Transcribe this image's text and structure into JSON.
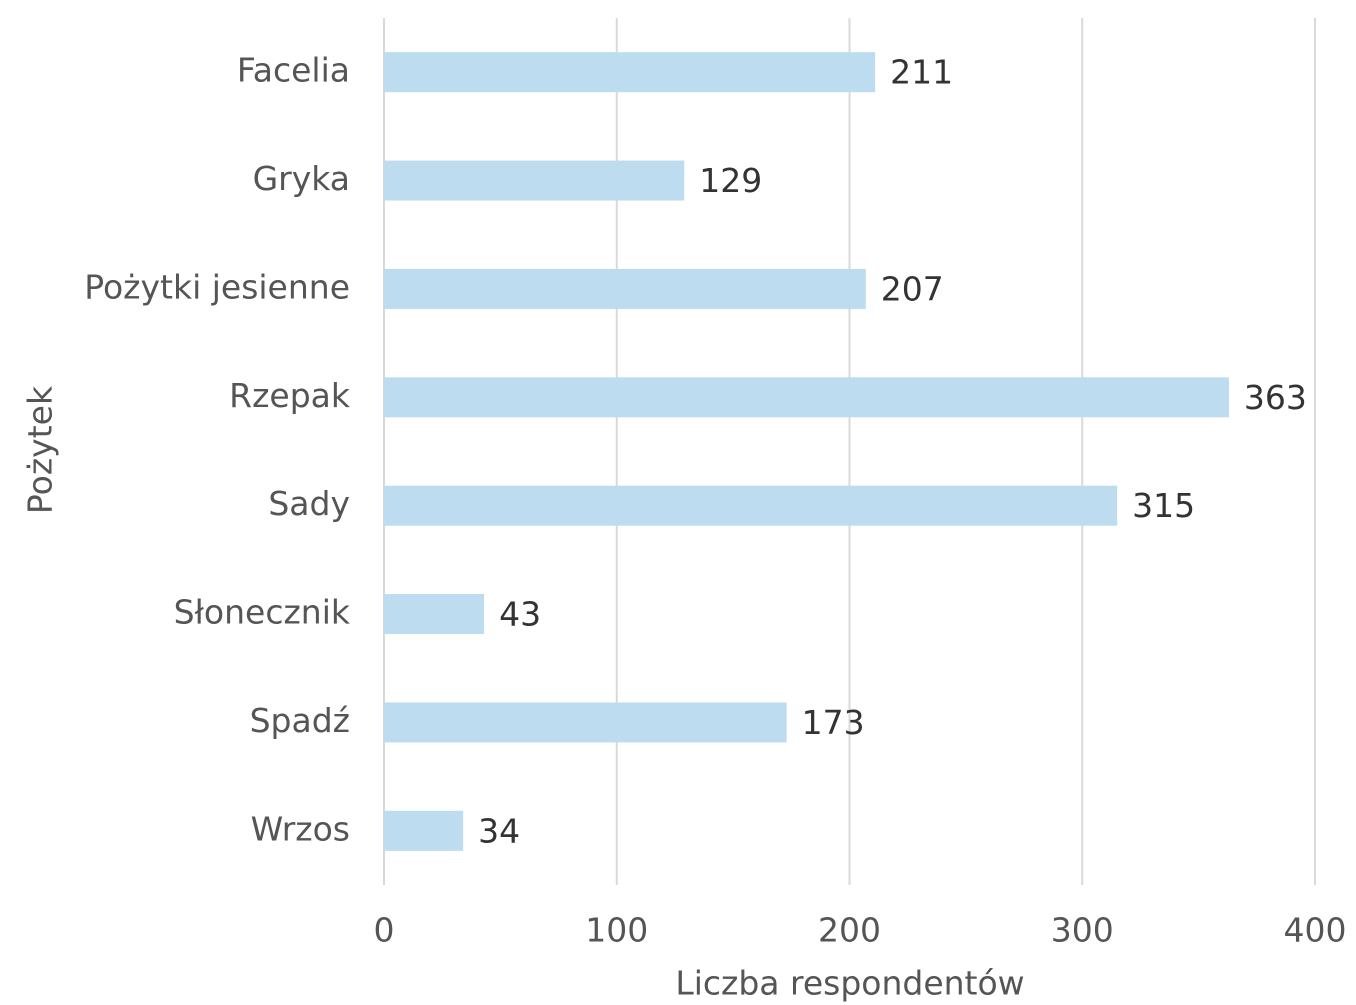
{
  "chart_data": {
    "type": "bar",
    "orientation": "horizontal",
    "x_label": "Liczba respondentów",
    "y_label": "Pożytek",
    "categories": [
      "Facelia",
      "Gryka",
      "Pożytki jesienne",
      "Rzepak",
      "Sady",
      "Słonecznik",
      "Spadź",
      "Wrzos"
    ],
    "values": [
      211,
      129,
      207,
      363,
      315,
      43,
      173,
      34
    ],
    "color": "#bddcf0",
    "xlim": [
      0,
      400
    ],
    "xticks": [
      0,
      100,
      200,
      300,
      400
    ],
    "grid": true
  }
}
